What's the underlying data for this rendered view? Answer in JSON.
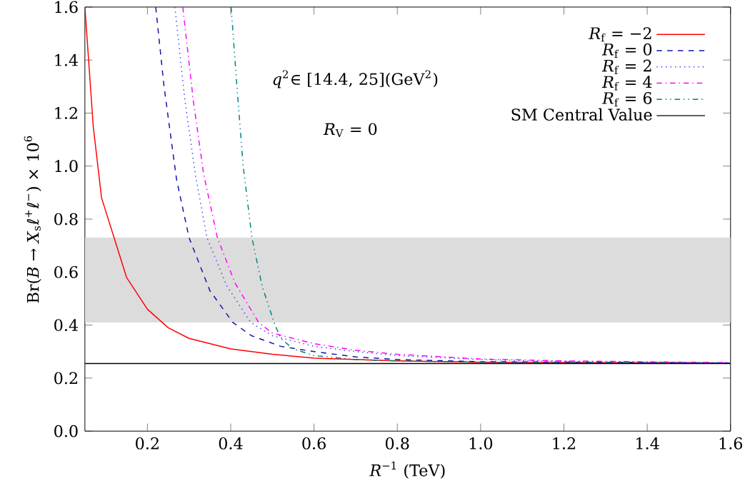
{
  "chart_data": {
    "type": "line",
    "xlabel": "*R*$^{−1}$ (TeV)",
    "ylabel": "Br(*B* → *X*$_{s}$ℓ$^{+}$ℓ$^{−}$) × 10$^{6}$",
    "annotations": [
      "*q*$^{2}$∈ [14.4, 25](GeV$^{2}$)",
      "*R*$_{V}$ = 0"
    ],
    "xlim": [
      0.05,
      1.6
    ],
    "ylim": [
      0,
      1.6
    ],
    "xticks": [
      0.2,
      0.4,
      0.6,
      0.8,
      {
        "value": 1,
        "label": "1.0"
      },
      1.2,
      1.4,
      1.6
    ],
    "yticks": [
      {
        "value": 0,
        "label": "0.0"
      },
      0.2,
      0.4,
      0.6,
      0.8,
      {
        "value": 1,
        "label": "1.0"
      },
      1.2,
      1.4,
      1.6
    ],
    "legend": "top right",
    "grid": false,
    "bands": [
      {
        "axis": "y",
        "from": 0.41,
        "to": 0.73,
        "color": "#dcdcdc"
      }
    ],
    "series": [
      {
        "name": "*R*$_{f}$ = −2",
        "color": "#ff0000",
        "line_style": "solid",
        "x": [
          0.05,
          0.07,
          0.09,
          0.12,
          0.15,
          0.2,
          0.25,
          0.3,
          0.4,
          0.5,
          0.6,
          0.8,
          1.0,
          1.6
        ],
        "values": [
          1.6,
          1.15,
          0.88,
          0.73,
          0.58,
          0.46,
          0.39,
          0.35,
          0.31,
          0.29,
          0.275,
          0.265,
          0.26,
          0.257
        ]
      },
      {
        "name": "*R*$_{f}$ = 0",
        "color": "#1010b0",
        "line_style": "dashed",
        "x": [
          0.22,
          0.24,
          0.27,
          0.3,
          0.35,
          0.405,
          0.45,
          0.52,
          0.6,
          0.7,
          0.8,
          1.0,
          1.6
        ],
        "values": [
          1.6,
          1.3,
          0.95,
          0.73,
          0.53,
          0.41,
          0.36,
          0.32,
          0.3,
          0.28,
          0.27,
          0.262,
          0.257
        ]
      },
      {
        "name": "*R*$_{f}$ = 2",
        "color": "#4040ff",
        "line_style": "dotted",
        "x": [
          0.266,
          0.29,
          0.315,
          0.343,
          0.39,
          0.448,
          0.5,
          0.6,
          0.7,
          0.8,
          1.0,
          1.2,
          1.6
        ],
        "values": [
          1.6,
          1.25,
          0.97,
          0.73,
          0.55,
          0.41,
          0.36,
          0.32,
          0.3,
          0.285,
          0.27,
          0.263,
          0.258
        ]
      },
      {
        "name": "*R*$_{f}$ = 4",
        "color": "#ff00ff",
        "line_style": "dashdot",
        "x": [
          0.285,
          0.31,
          0.335,
          0.368,
          0.41,
          0.467,
          0.5,
          0.6,
          0.7,
          0.8,
          1.0,
          1.2,
          1.6
        ],
        "values": [
          1.6,
          1.25,
          0.97,
          0.73,
          0.56,
          0.41,
          0.37,
          0.33,
          0.305,
          0.29,
          0.272,
          0.265,
          0.258
        ]
      },
      {
        "name": "*R*$_{f}$ = 6",
        "color": "#008080",
        "line_style": "dashdotdot",
        "x": [
          0.401,
          0.415,
          0.43,
          0.451,
          0.475,
          0.504,
          0.52,
          0.55,
          0.6,
          0.7,
          0.8,
          1.0,
          1.6
        ],
        "values": [
          1.6,
          1.3,
          1.0,
          0.73,
          0.55,
          0.41,
          0.35,
          0.31,
          0.285,
          0.27,
          0.265,
          0.26,
          0.257
        ]
      },
      {
        "name": "SM Central Value",
        "color": "#000000",
        "line_style": "solid",
        "x": [
          0.05,
          1.6
        ],
        "values": [
          0.255,
          0.255
        ]
      }
    ]
  }
}
